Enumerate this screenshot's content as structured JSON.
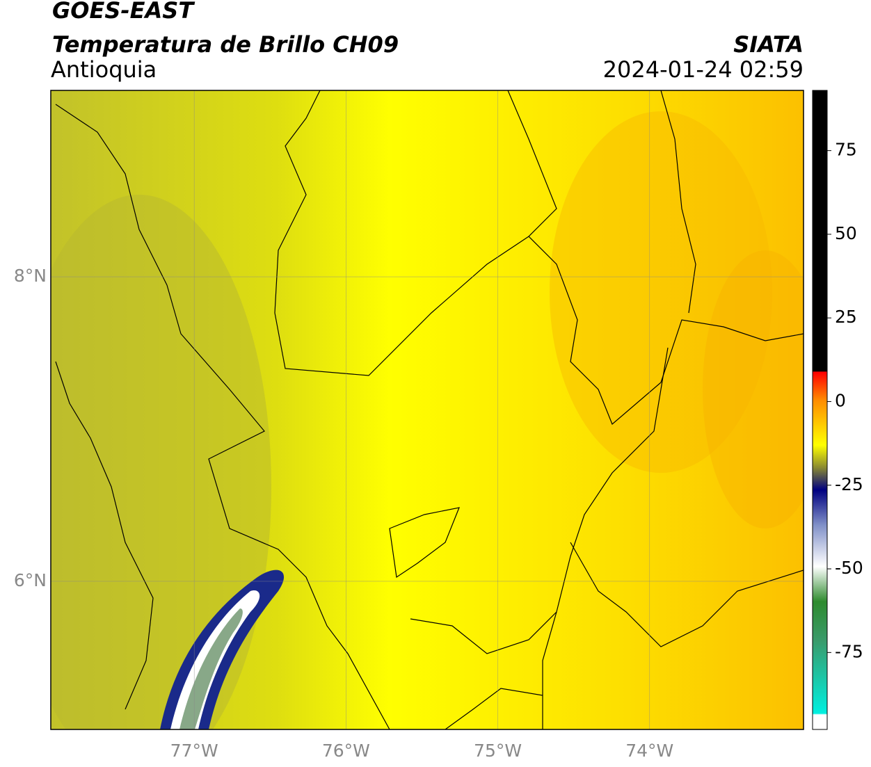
{
  "header": {
    "title": "GOES-EAST",
    "subtitle": "Temperatura de Brillo CH09",
    "region": "Antioquia",
    "source": "SIATA",
    "datetime": "2024-01-24 02:59"
  },
  "map": {
    "xlim": [
      -77.945,
      -72.986
    ],
    "ylim": [
      5.027,
      9.224
    ],
    "xticks": [
      {
        "value": -77,
        "label": "77°W"
      },
      {
        "value": -76,
        "label": "76°W"
      },
      {
        "value": -75,
        "label": "75°W"
      },
      {
        "value": -74,
        "label": "74°W"
      }
    ],
    "yticks": [
      {
        "value": 6,
        "label": "6°N"
      },
      {
        "value": 8,
        "label": "8°N"
      }
    ]
  },
  "colorbar": {
    "ylim": [
      -98,
      93
    ],
    "yticks": [
      75,
      50,
      25,
      0,
      -25,
      -50,
      -75
    ]
  }
}
